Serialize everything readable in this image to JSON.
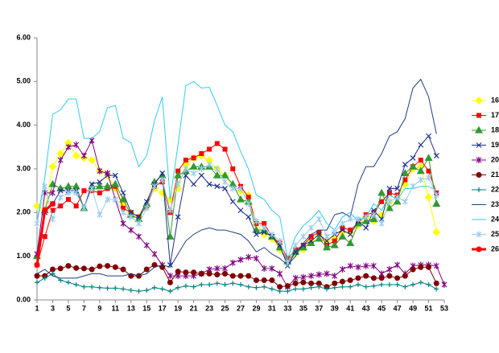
{
  "chart_data": {
    "type": "line",
    "x": [
      1,
      2,
      3,
      4,
      5,
      6,
      7,
      8,
      9,
      10,
      11,
      12,
      13,
      14,
      15,
      16,
      17,
      18,
      19,
      20,
      21,
      22,
      23,
      24,
      25,
      26,
      27,
      28,
      29,
      30,
      31,
      32,
      33,
      34,
      35,
      36,
      37,
      38,
      39,
      40,
      41,
      42,
      43,
      44,
      45,
      46,
      47,
      48,
      49,
      50,
      51,
      52,
      53
    ],
    "xlim": [
      1,
      53
    ],
    "xticks": [
      1,
      3,
      5,
      7,
      9,
      11,
      13,
      15,
      17,
      19,
      21,
      23,
      25,
      27,
      29,
      31,
      33,
      35,
      37,
      39,
      41,
      43,
      45,
      47,
      49,
      51,
      53
    ],
    "ylim": [
      0,
      6
    ],
    "yticks": [
      {
        "value": 0,
        "label": "0.00"
      },
      {
        "value": 1,
        "label": "1.00"
      },
      {
        "value": 2,
        "label": "2.00"
      },
      {
        "value": 3,
        "label": "3.00"
      },
      {
        "value": 4,
        "label": "4.00"
      },
      {
        "value": 5,
        "label": "5.00"
      },
      {
        "value": 6,
        "label": "6.00"
      }
    ],
    "legend": "right",
    "series": [
      {
        "name": "16",
        "color": "#ffff00",
        "marker": "diamond",
        "width": 1,
        "values": [
          2.15,
          2.05,
          3.05,
          3.35,
          3.6,
          3.3,
          3.25,
          3.2,
          2.95,
          2.85,
          2.55,
          2.2,
          2.0,
          1.9,
          2.15,
          2.55,
          2.45,
          2.3,
          2.55,
          3.1,
          3.25,
          3.3,
          3.2,
          3.0,
          2.85,
          2.6,
          2.5,
          2.4,
          1.75,
          1.5,
          1.4,
          1.15,
          0.85,
          1.05,
          1.15,
          1.35,
          1.5,
          1.35,
          1.4,
          1.55,
          1.55,
          1.7,
          1.9,
          1.8,
          1.95,
          2.25,
          2.35,
          2.65,
          3.0,
          3.05,
          2.35,
          1.55,
          null
        ]
      },
      {
        "name": "17",
        "color": "#ff0000",
        "marker": "square",
        "width": 1,
        "values": [
          0.8,
          1.45,
          2.05,
          2.15,
          2.3,
          2.15,
          2.5,
          2.5,
          2.45,
          2.55,
          2.6,
          2.1,
          2.0,
          1.9,
          2.15,
          2.6,
          2.7,
          2.0,
          2.95,
          3.2,
          3.25,
          3.35,
          3.45,
          3.58,
          3.45,
          3.0,
          2.6,
          2.35,
          1.75,
          1.75,
          1.45,
          1.3,
          0.95,
          1.15,
          1.25,
          1.45,
          1.55,
          1.25,
          1.35,
          1.65,
          1.6,
          1.75,
          1.95,
          2.0,
          2.25,
          2.45,
          2.4,
          2.75,
          3.05,
          3.2,
          2.95,
          2.45,
          null
        ]
      },
      {
        "name": "18",
        "color": "#339933",
        "marker": "triangle",
        "width": 1,
        "values": [
          1.0,
          2.05,
          2.65,
          2.55,
          2.6,
          2.6,
          2.1,
          2.6,
          2.6,
          2.6,
          2.65,
          2.3,
          1.95,
          1.85,
          2.2,
          2.7,
          2.85,
          1.45,
          2.85,
          2.95,
          3.05,
          3.05,
          3.05,
          2.85,
          2.85,
          2.65,
          2.3,
          2.25,
          1.6,
          1.6,
          1.45,
          1.2,
          0.88,
          1.1,
          1.2,
          1.3,
          1.4,
          1.2,
          1.25,
          1.45,
          1.3,
          1.75,
          1.8,
          1.85,
          2.45,
          2.1,
          2.25,
          2.9,
          3.05,
          2.95,
          3.25,
          2.2,
          null
        ]
      },
      {
        "name": "19",
        "color": "#1f2f8f",
        "marker": "x",
        "width": 1,
        "values": [
          1.05,
          2.0,
          2.2,
          2.5,
          2.5,
          2.5,
          2.1,
          2.65,
          2.7,
          2.85,
          2.85,
          2.45,
          2.0,
          1.9,
          2.25,
          2.65,
          2.9,
          0.8,
          1.9,
          2.85,
          2.65,
          2.85,
          2.65,
          2.6,
          2.55,
          2.25,
          2.05,
          1.9,
          1.5,
          1.55,
          1.45,
          1.25,
          0.78,
          1.1,
          1.25,
          1.35,
          1.5,
          1.35,
          1.5,
          1.6,
          1.5,
          1.8,
          1.65,
          2.05,
          1.85,
          2.55,
          2.55,
          3.1,
          3.25,
          3.55,
          3.75,
          3.3,
          null
        ]
      },
      {
        "name": "20",
        "color": "#800080",
        "marker": "star",
        "width": 1,
        "values": [
          1.05,
          2.45,
          2.45,
          3.2,
          3.5,
          3.55,
          3.3,
          3.65,
          2.95,
          2.9,
          2.3,
          1.75,
          1.6,
          1.45,
          1.25,
          1.05,
          0.8,
          0.55,
          0.55,
          0.55,
          0.55,
          0.6,
          0.7,
          0.72,
          0.72,
          0.85,
          0.92,
          0.98,
          0.95,
          0.72,
          0.72,
          0.6,
          0.3,
          0.5,
          0.52,
          0.55,
          0.58,
          0.6,
          0.55,
          0.7,
          0.78,
          0.75,
          0.78,
          0.78,
          0.6,
          0.7,
          0.8,
          0.6,
          0.78,
          0.8,
          0.8,
          0.78,
          0.35
        ]
      },
      {
        "name": "21",
        "color": "#800000",
        "marker": "circle",
        "width": 1,
        "values": [
          0.55,
          0.55,
          0.7,
          0.72,
          0.78,
          0.73,
          0.72,
          0.7,
          0.77,
          0.78,
          0.75,
          0.7,
          0.55,
          0.55,
          0.7,
          0.8,
          0.75,
          0.4,
          0.65,
          0.63,
          0.63,
          0.6,
          0.6,
          0.58,
          0.6,
          0.55,
          0.55,
          0.55,
          0.45,
          0.45,
          0.45,
          0.3,
          0.32,
          0.38,
          0.4,
          0.38,
          0.38,
          0.3,
          0.38,
          0.42,
          0.45,
          0.5,
          0.55,
          0.5,
          0.5,
          0.55,
          0.5,
          0.55,
          0.7,
          0.75,
          0.75,
          0.38,
          null
        ]
      },
      {
        "name": "22",
        "color": "#008080",
        "marker": "plus",
        "width": 1,
        "values": [
          0.4,
          0.5,
          0.6,
          0.45,
          0.4,
          0.35,
          0.3,
          0.3,
          0.28,
          0.27,
          0.27,
          0.25,
          0.22,
          0.2,
          0.22,
          0.28,
          0.25,
          0.2,
          0.28,
          0.32,
          0.3,
          0.35,
          0.35,
          0.38,
          0.35,
          0.38,
          0.35,
          0.3,
          0.28,
          0.3,
          0.25,
          0.2,
          0.2,
          0.25,
          0.25,
          0.28,
          0.3,
          0.25,
          0.28,
          0.3,
          0.3,
          0.35,
          0.3,
          0.32,
          0.35,
          0.35,
          0.35,
          0.3,
          0.35,
          0.4,
          0.35,
          0.25,
          null
        ]
      },
      {
        "name": "23",
        "color": "#1f3f7f",
        "marker": "none",
        "width": 1,
        "values": [
          0.6,
          0.7,
          0.55,
          0.5,
          0.5,
          0.5,
          0.55,
          0.6,
          0.6,
          0.55,
          0.55,
          0.55,
          0.6,
          0.55,
          0.6,
          0.75,
          0.8,
          0.75,
          1.05,
          1.35,
          1.5,
          1.6,
          1.65,
          1.6,
          1.6,
          1.55,
          1.5,
          1.35,
          1.1,
          1.2,
          1.05,
          0.95,
          0.8,
          1.0,
          1.3,
          1.5,
          1.6,
          1.6,
          1.95,
          2.0,
          1.9,
          2.65,
          3.05,
          3.05,
          3.35,
          3.75,
          3.85,
          4.15,
          4.85,
          5.05,
          4.65,
          3.8,
          null
        ]
      },
      {
        "name": "24",
        "color": "#33ccee",
        "marker": "none",
        "width": 1,
        "values": [
          1.8,
          2.8,
          4.25,
          4.35,
          4.6,
          4.6,
          3.7,
          3.7,
          3.85,
          4.4,
          4.45,
          3.7,
          3.6,
          3.05,
          3.3,
          4.1,
          4.65,
          2.3,
          3.55,
          4.9,
          5.0,
          4.85,
          4.87,
          4.45,
          4.0,
          3.85,
          3.4,
          3.0,
          2.4,
          2.3,
          2.05,
          1.9,
          0.95,
          1.45,
          1.7,
          1.85,
          2.05,
          1.75,
          1.6,
          1.9,
          2.0,
          1.8,
          1.9,
          2.2,
          2.05,
          2.4,
          2.3,
          2.55,
          2.55,
          2.6,
          2.6,
          2.5,
          null
        ]
      },
      {
        "name": "25",
        "color": "#99ccee",
        "marker": "star",
        "width": 1,
        "values": [
          1.75,
          2.6,
          1.85,
          2.35,
          2.45,
          2.45,
          2.1,
          2.55,
          1.95,
          2.3,
          2.3,
          2.0,
          1.9,
          1.75,
          2.1,
          2.6,
          2.75,
          2.05,
          2.65,
          3.0,
          2.9,
          3.0,
          3.1,
          3.0,
          2.7,
          2.55,
          2.55,
          2.2,
          1.8,
          1.65,
          1.5,
          1.35,
          0.85,
          1.25,
          1.45,
          1.65,
          1.85,
          1.45,
          1.55,
          1.75,
          1.85,
          1.85,
          1.9,
          1.95,
          1.75,
          2.25,
          2.35,
          2.25,
          2.6,
          2.75,
          2.8,
          2.4,
          null
        ]
      },
      {
        "name": "26",
        "color": "#ff0000",
        "marker": "circle",
        "width": 3,
        "values": [
          0.8,
          2.05,
          2.2,
          null,
          null,
          null,
          null,
          null,
          null,
          null,
          null,
          null,
          null,
          null,
          null,
          null,
          null,
          null,
          null,
          null,
          null,
          null,
          null,
          null,
          null,
          null,
          null,
          null,
          null,
          null,
          null,
          null,
          null,
          null,
          null,
          null,
          null,
          null,
          null,
          null,
          null,
          null,
          null,
          null,
          null,
          null,
          null,
          null,
          null,
          null,
          null,
          null,
          null
        ]
      }
    ]
  }
}
